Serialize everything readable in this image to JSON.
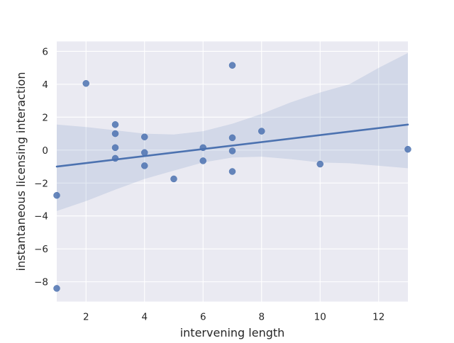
{
  "chart_data": {
    "type": "scatter",
    "title": "",
    "xlabel": "intervening length",
    "ylabel": "instantaneous licensing interaction",
    "xlim": [
      1,
      13
    ],
    "ylim": [
      -9.2,
      6.6
    ],
    "xticks": [
      2,
      4,
      6,
      8,
      10,
      12
    ],
    "yticks": [
      -8,
      -6,
      -4,
      -2,
      0,
      2,
      4,
      6
    ],
    "grid": true,
    "legend": "none",
    "colors": {
      "background": "#eaeaf2",
      "grid": "#ffffff",
      "points": "#4c72b0",
      "line": "#4c72b0",
      "band": "#4c72b0",
      "text": "#262626"
    },
    "points": [
      {
        "x": 1,
        "y": -2.75
      },
      {
        "x": 1,
        "y": -8.4
      },
      {
        "x": 2,
        "y": 4.05
      },
      {
        "x": 3,
        "y": 1.55
      },
      {
        "x": 3,
        "y": 1.0
      },
      {
        "x": 3,
        "y": 0.15
      },
      {
        "x": 3,
        "y": -0.5
      },
      {
        "x": 4,
        "y": 0.8
      },
      {
        "x": 4,
        "y": -0.15
      },
      {
        "x": 4,
        "y": -0.95
      },
      {
        "x": 5,
        "y": -1.75
      },
      {
        "x": 6,
        "y": 0.15
      },
      {
        "x": 6,
        "y": -0.65
      },
      {
        "x": 7,
        "y": 5.15
      },
      {
        "x": 7,
        "y": 0.75
      },
      {
        "x": 7,
        "y": -0.05
      },
      {
        "x": 7,
        "y": -1.3
      },
      {
        "x": 8,
        "y": 1.15
      },
      {
        "x": 10,
        "y": -0.85
      },
      {
        "x": 13,
        "y": 0.05
      }
    ],
    "regression": {
      "x": [
        1,
        13
      ],
      "y": [
        -1.0,
        1.55
      ]
    },
    "confidence_band": {
      "x": [
        1,
        2,
        3,
        4,
        5,
        6,
        7,
        8,
        9,
        10,
        11,
        12,
        13
      ],
      "upper": [
        1.55,
        1.4,
        1.2,
        1.0,
        0.95,
        1.15,
        1.6,
        2.2,
        2.9,
        3.5,
        4.0,
        5.0,
        5.9
      ],
      "lower": [
        -3.7,
        -3.1,
        -2.4,
        -1.75,
        -1.25,
        -0.75,
        -0.45,
        -0.4,
        -0.55,
        -0.75,
        -0.8,
        -0.95,
        -1.1
      ]
    }
  }
}
